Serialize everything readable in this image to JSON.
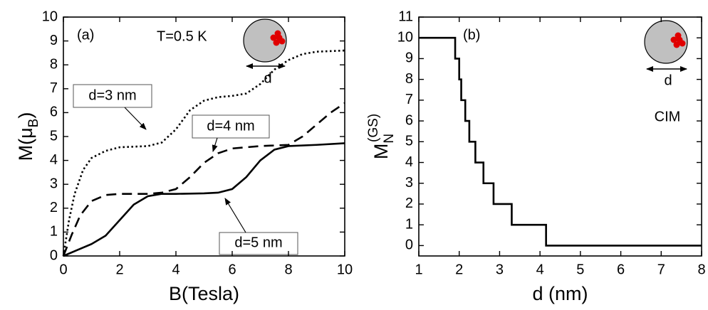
{
  "chart_data": [
    {
      "type": "line",
      "xlabel": "B(Tesla)",
      "ylabel": {
        "main": "M(μ",
        "subscript": "B",
        "end": ")"
      },
      "xlim": [
        0,
        10
      ],
      "ylim": [
        0,
        10
      ],
      "xticks": [
        0,
        2,
        4,
        6,
        8,
        10
      ],
      "yticks": [
        0,
        1,
        2,
        3,
        4,
        5,
        6,
        7,
        8,
        9,
        10
      ],
      "annotations": [
        "(a)",
        "T=0.5 K",
        "d",
        "d=3 nm",
        "d=4 nm",
        "d=5 nm"
      ],
      "series": [
        {
          "name": "d=3 nm",
          "color": "#000000",
          "dash": "dotted",
          "x": [
            0,
            0.2,
            0.4,
            0.7,
            1,
            1.5,
            2,
            3,
            3.5,
            4,
            4.5,
            5,
            5.5,
            6,
            6.5,
            7,
            7.5,
            8,
            8.5,
            9,
            10
          ],
          "values": [
            0,
            1.5,
            2.6,
            3.6,
            4.1,
            4.4,
            4.55,
            4.6,
            4.75,
            5.3,
            6.1,
            6.5,
            6.65,
            6.7,
            6.8,
            7.2,
            7.8,
            8.2,
            8.45,
            8.55,
            8.6
          ]
        },
        {
          "name": "d=4 nm",
          "color": "#000000",
          "dash": "dashed",
          "x": [
            0,
            0.3,
            0.6,
            1,
            1.5,
            2,
            3,
            3.5,
            4,
            4.5,
            5,
            5.5,
            6,
            7,
            8,
            8.5,
            9,
            9.5,
            10
          ],
          "values": [
            0,
            0.9,
            1.7,
            2.3,
            2.55,
            2.6,
            2.6,
            2.65,
            2.8,
            3.3,
            3.9,
            4.3,
            4.5,
            4.6,
            4.65,
            5.0,
            5.5,
            6.0,
            6.4
          ]
        },
        {
          "name": "d=5 nm",
          "color": "#000000",
          "dash": "solid",
          "x": [
            0,
            0.5,
            1,
            1.5,
            2,
            2.5,
            3,
            3.5,
            4,
            5,
            5.5,
            6,
            6.5,
            7,
            7.5,
            8,
            9,
            10
          ],
          "values": [
            0,
            0.25,
            0.5,
            0.85,
            1.5,
            2.15,
            2.5,
            2.6,
            2.6,
            2.62,
            2.65,
            2.8,
            3.3,
            4.0,
            4.45,
            4.6,
            4.65,
            4.72
          ]
        }
      ]
    },
    {
      "type": "line",
      "xlabel": "d (nm)",
      "ylabel": {
        "main": "M",
        "subscript": "N",
        "superscript": "(GS)"
      },
      "xlim": [
        1,
        8
      ],
      "ylim": [
        -0.5,
        11
      ],
      "xticks": [
        1,
        2,
        3,
        4,
        5,
        6,
        7,
        8
      ],
      "yticks": [
        0,
        1,
        2,
        3,
        4,
        5,
        6,
        7,
        8,
        9,
        10,
        11
      ],
      "annotations": [
        "(b)",
        "d",
        "CIM"
      ],
      "series": [
        {
          "color": "#000000",
          "dash": "solid",
          "x": [
            1,
            1.9,
            1.9,
            2.0,
            2.0,
            2.05,
            2.05,
            2.15,
            2.15,
            2.25,
            2.25,
            2.4,
            2.4,
            2.6,
            2.6,
            2.85,
            2.85,
            3.3,
            3.3,
            4.15,
            4.15,
            8
          ],
          "values": [
            10,
            10,
            9,
            9,
            8,
            8,
            7,
            7,
            6,
            6,
            5,
            5,
            4,
            4,
            3,
            3,
            2,
            2,
            1,
            1,
            0,
            0
          ]
        }
      ]
    }
  ]
}
